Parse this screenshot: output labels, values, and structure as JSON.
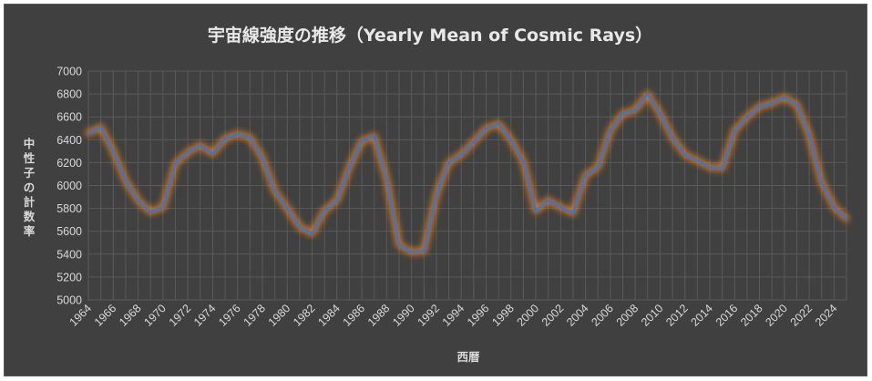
{
  "chart_data": {
    "type": "line",
    "title": "宇宙線強度の推移（Yearly Mean of Cosmic Rays）",
    "xlabel": "西暦",
    "ylabel": "中性子の計数率",
    "ylim": [
      5000,
      7000
    ],
    "yticks": [
      5000,
      5200,
      5400,
      5600,
      5800,
      6000,
      6200,
      6400,
      6600,
      6800,
      7000
    ],
    "xticks": [
      1964,
      1966,
      1968,
      1970,
      1972,
      1974,
      1976,
      1978,
      1980,
      1982,
      1984,
      1986,
      1988,
      1990,
      1992,
      1994,
      1996,
      1998,
      2000,
      2002,
      2004,
      2006,
      2008,
      2010,
      2012,
      2014,
      2016,
      2018,
      2020,
      2022,
      2024
    ],
    "grid": true,
    "legend": "none",
    "colors": {
      "line": "#4472c4",
      "glow": "#ff8c1a",
      "grid": "#5a5a5a"
    },
    "x": [
      1964,
      1965,
      1966,
      1967,
      1968,
      1969,
      1970,
      1971,
      1972,
      1973,
      1974,
      1975,
      1976,
      1977,
      1978,
      1979,
      1980,
      1981,
      1982,
      1983,
      1984,
      1985,
      1986,
      1987,
      1988,
      1989,
      1990,
      1991,
      1992,
      1993,
      1994,
      1995,
      1996,
      1997,
      1998,
      1999,
      2000,
      2001,
      2002,
      2003,
      2004,
      2005,
      2006,
      2007,
      2008,
      2009,
      2010,
      2011,
      2012,
      2013,
      2014,
      2015,
      2016,
      2017,
      2018,
      2019,
      2020,
      2021,
      2022,
      2023,
      2024,
      2025
    ],
    "series": [
      {
        "values": [
          6460,
          6510,
          6300,
          6040,
          5870,
          5770,
          5810,
          6190,
          6290,
          6350,
          6280,
          6410,
          6450,
          6420,
          6240,
          5950,
          5800,
          5640,
          5580,
          5780,
          5870,
          6160,
          6390,
          6430,
          6060,
          5480,
          5420,
          5430,
          5920,
          6200,
          6270,
          6380,
          6500,
          6540,
          6400,
          6210,
          5780,
          5870,
          5810,
          5760,
          6090,
          6160,
          6480,
          6630,
          6660,
          6800,
          6630,
          6420,
          6270,
          6220,
          6160,
          6150,
          6480,
          6600,
          6690,
          6720,
          6770,
          6710,
          6440,
          6030,
          5810,
          5710
        ]
      }
    ]
  }
}
